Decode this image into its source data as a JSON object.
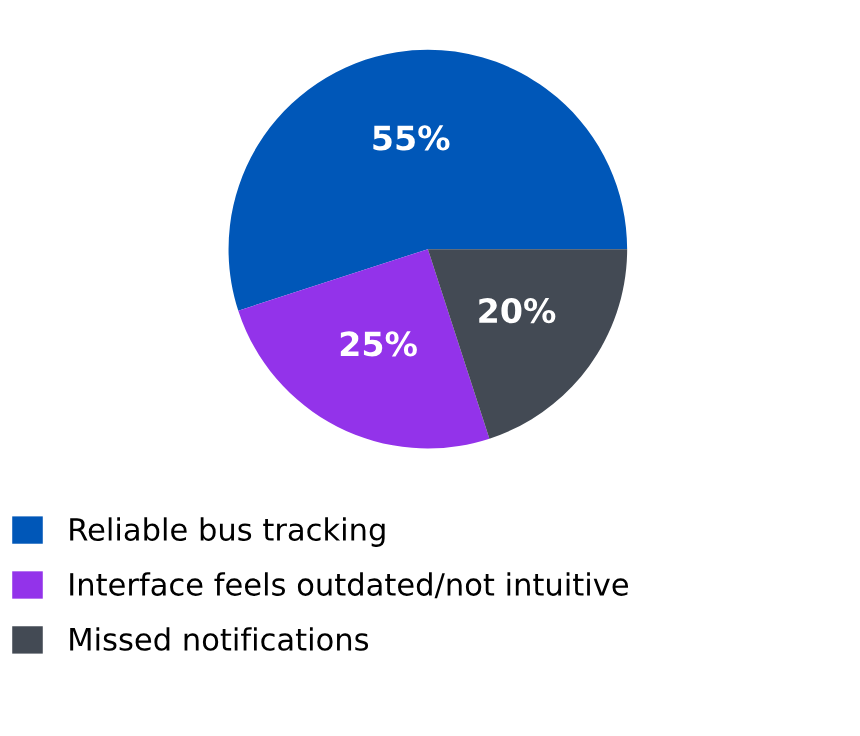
{
  "chart_data": {
    "type": "pie",
    "categories": [
      "Reliable bus tracking",
      "Interface feels outdated/not intuitive",
      "Missed notifications"
    ],
    "values": [
      55,
      25,
      20
    ],
    "colors": [
      "#0057b8",
      "#9333ea",
      "#434a54"
    ],
    "value_labels": [
      "55%",
      "25%",
      "20%"
    ],
    "legend": "bottom"
  }
}
